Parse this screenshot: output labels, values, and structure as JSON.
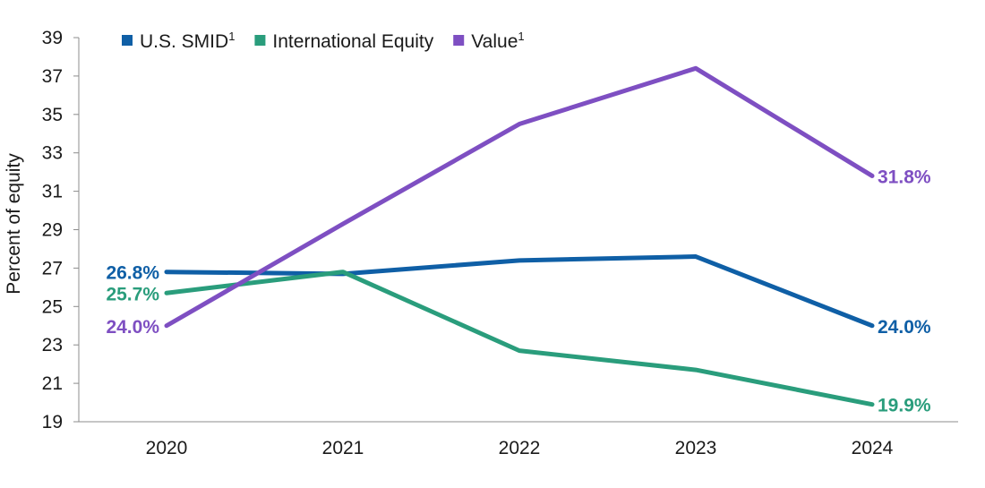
{
  "chart_data": {
    "type": "line",
    "title": "",
    "xlabel": "",
    "ylabel": "Percent of equity",
    "categories": [
      "2020",
      "2021",
      "2022",
      "2023",
      "2024"
    ],
    "ylim": [
      19,
      39
    ],
    "yticks": [
      19,
      21,
      23,
      25,
      27,
      29,
      31,
      33,
      35,
      37,
      39
    ],
    "ytick_labels": [
      "19",
      "21",
      "23",
      "25",
      "27",
      "29",
      "31",
      "33",
      "35",
      "37",
      "39"
    ],
    "grid": false,
    "legend_position": "top-left",
    "series": [
      {
        "name": "U.S. SMID",
        "name_superscript": "1",
        "color": "#0f5fa6",
        "values": [
          26.8,
          26.7,
          27.4,
          27.6,
          24.0
        ],
        "start_label": "26.8%",
        "end_label": "24.0%"
      },
      {
        "name": "International Equity",
        "name_superscript": "",
        "color": "#2a9d7c",
        "values": [
          25.7,
          26.8,
          22.7,
          21.7,
          19.9
        ],
        "start_label": "25.7%",
        "end_label": "19.9%"
      },
      {
        "name": "Value",
        "name_superscript": "1",
        "color": "#7e4fc2",
        "values": [
          24.0,
          29.3,
          34.5,
          37.4,
          31.8
        ],
        "start_label": "24.0%",
        "end_label": "31.8%"
      }
    ]
  }
}
